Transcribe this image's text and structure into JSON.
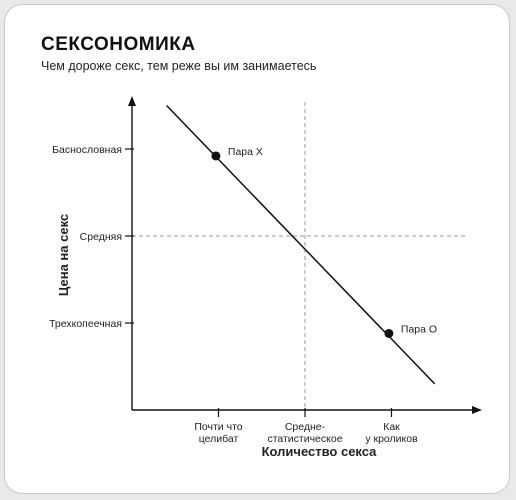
{
  "header": {
    "title": "СЕКСОНОМИКА",
    "subtitle": "Чем дороже секс, тем реже вы им занимаетесь"
  },
  "chart_data": {
    "type": "line",
    "title": "СЕКСОНОМИКА",
    "subtitle": "Чем дороже секс, тем реже вы им занимаетесь",
    "xlabel": "Количество секса",
    "ylabel": "Цена на секс",
    "x_ticks": [
      "Почти что целибат",
      "Средне-статистическое",
      "Как у кроликов"
    ],
    "y_ticks": [
      "Трехкопеечная",
      "Средняя",
      "Баснословная"
    ],
    "xlim": [
      0,
      4
    ],
    "ylim": [
      0,
      4
    ],
    "grid": false,
    "reference_lines": {
      "x": 2,
      "y": 2
    },
    "series": [
      {
        "x": [
          0.4,
          3.5
        ],
        "y": [
          3.5,
          0.3
        ]
      }
    ],
    "points": [
      {
        "label": "Пара X",
        "x": 0.97,
        "y": 2.92
      },
      {
        "label": "Пара О",
        "x": 2.97,
        "y": 0.88
      }
    ]
  },
  "colors": {
    "ink": "#111111",
    "dashed": "#9a9a9a"
  }
}
